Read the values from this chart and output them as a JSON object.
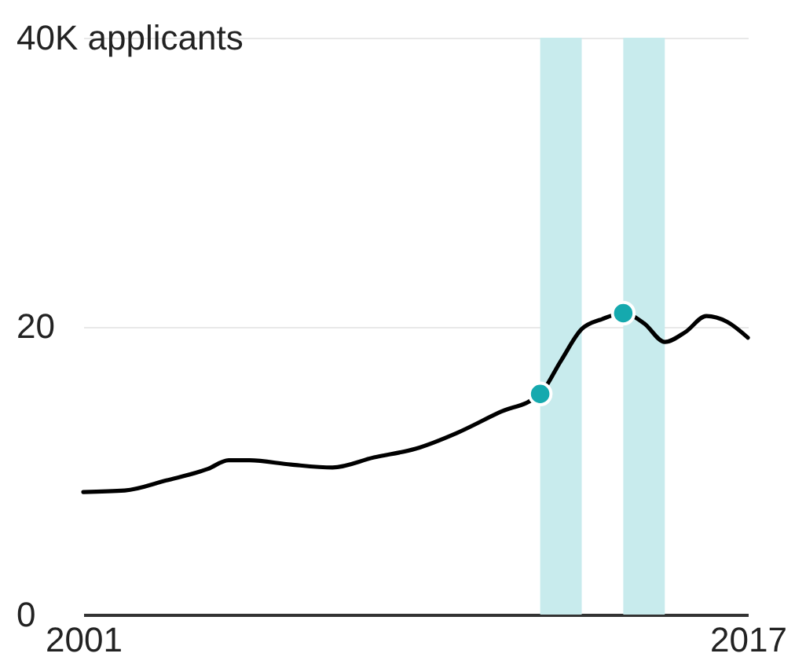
{
  "chart_data": {
    "type": "line",
    "x": [
      2001,
      2002,
      2003,
      2004,
      2004.5,
      2005,
      2006,
      2007,
      2008,
      2009,
      2010,
      2011,
      2012,
      2012.5,
      2013,
      2013.5,
      2014,
      2014.5,
      2015,
      2015.5,
      2016,
      2016.5,
      2017
    ],
    "xlim": [
      2001,
      2017
    ],
    "xticks": [
      2001,
      2017
    ],
    "ylim": [
      0,
      40
    ],
    "yticks": [
      0,
      20,
      {
        "value": 40,
        "label": "40K applicants"
      }
    ],
    "grid": "y",
    "series": [
      {
        "color": "#000000",
        "values": [
          8.5,
          8.6,
          9.3,
          10.1,
          10.7,
          10.7,
          10.4,
          10.2,
          10.9,
          11.5,
          12.6,
          14.0,
          15.3,
          17.6,
          19.8,
          20.5,
          20.9,
          20.2,
          18.9,
          19.6,
          20.7,
          20.3,
          19.2
        ]
      },
      {
        "type": "scatter",
        "x": [
          2012,
          2014
        ],
        "color": "#15a9ae",
        "marker": "circle",
        "values": [
          15.3,
          20.9
        ]
      }
    ],
    "bands": [
      {
        "axis": "x",
        "from": 2012,
        "to": 2013,
        "color": "#c8ebed"
      },
      {
        "axis": "x",
        "from": 2014,
        "to": 2015,
        "color": "#c8ebed"
      }
    ]
  }
}
